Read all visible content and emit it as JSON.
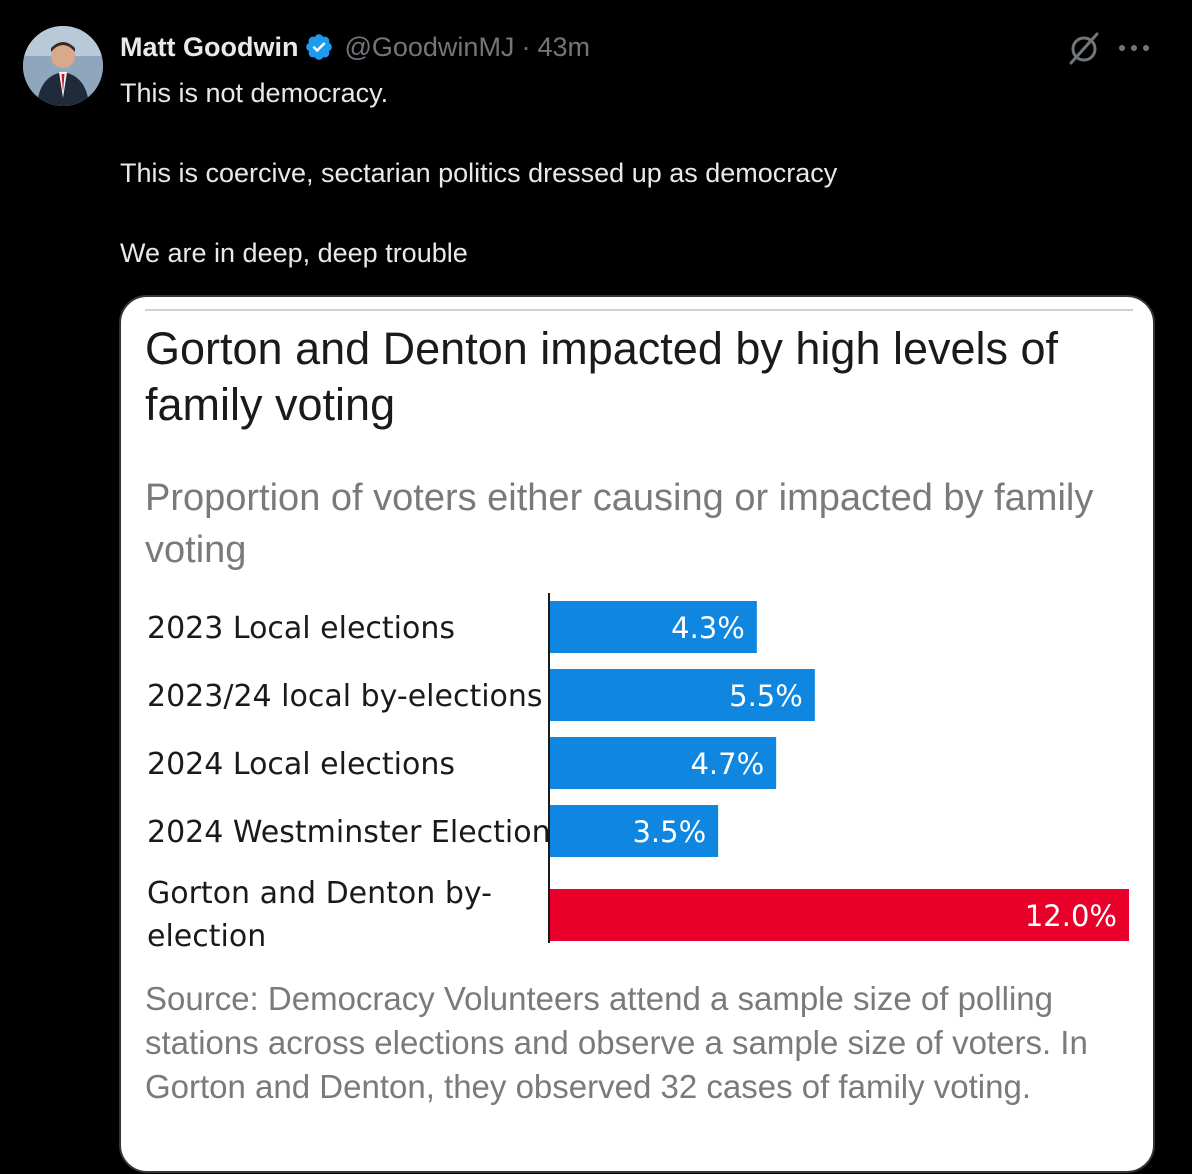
{
  "author": {
    "display_name": "Matt Goodwin",
    "handle": "@GoodwinMJ",
    "separator": "·",
    "timestamp": "43m",
    "avatar_icon": "avatar-photo",
    "verified_icon": "verified-badge-icon"
  },
  "actions": {
    "grok_icon": "grok-icon",
    "more_icon": "more-options-icon"
  },
  "tweet": {
    "lines": [
      "This is not democracy.",
      "This is coercive, sectarian politics dressed up as democracy",
      "We are in deep, deep trouble"
    ]
  },
  "chart_data": {
    "type": "bar",
    "orientation": "horizontal",
    "title": "Gorton and Denton impacted by high levels of family voting",
    "subtitle": "Proportion of voters either causing or impacted by family voting",
    "categories": [
      "2023 Local elections",
      "2023/24 local by-elections",
      "2024 Local elections",
      "2024 Westminster Election",
      "Gorton and Denton by-election"
    ],
    "values": [
      4.3,
      5.5,
      4.7,
      3.5,
      12.0
    ],
    "value_labels": [
      "4.3%",
      "5.5%",
      "4.7%",
      "3.5%",
      "12.0%"
    ],
    "unit": "%",
    "xlim": [
      0,
      12.0
    ],
    "colors": [
      "#0f86e0",
      "#0f86e0",
      "#0f86e0",
      "#0f86e0",
      "#e8002b"
    ],
    "grid": false,
    "legend": "none",
    "source": "Source: Democracy Volunteers attend a sample size of polling stations across elections and observe a sample size of voters. In Gorton and Denton, they observed 32 cases of family voting."
  }
}
